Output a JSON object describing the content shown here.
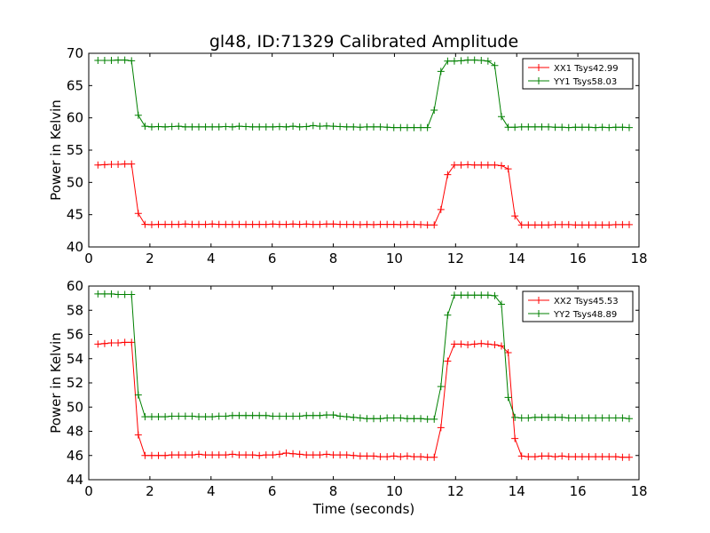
{
  "figure": {
    "title": "gl48, ID:71329 Calibrated Amplitude",
    "xlabel": "Time (seconds)"
  },
  "chart_data": [
    {
      "type": "line",
      "title": "gl48, ID:71329 Calibrated Amplitude",
      "xlabel": "",
      "ylabel": "Power in Kelvin",
      "xlim": [
        0,
        18
      ],
      "ylim": [
        40,
        70
      ],
      "xticks": [
        0,
        2,
        4,
        6,
        8,
        10,
        12,
        14,
        16,
        18
      ],
      "yticks": [
        40,
        45,
        50,
        55,
        60,
        65,
        70
      ],
      "grid": false,
      "legend_position": "top-right",
      "x": [
        0.3,
        0.52,
        0.74,
        0.96,
        1.18,
        1.4,
        1.62,
        1.84,
        2.06,
        2.28,
        2.5,
        2.72,
        2.94,
        3.16,
        3.38,
        3.6,
        3.82,
        4.04,
        4.26,
        4.48,
        4.7,
        4.92,
        5.14,
        5.36,
        5.58,
        5.8,
        6.02,
        6.24,
        6.46,
        6.68,
        6.9,
        7.12,
        7.34,
        7.56,
        7.78,
        8.0,
        8.22,
        8.44,
        8.66,
        8.88,
        9.1,
        9.32,
        9.54,
        9.76,
        9.98,
        10.2,
        10.42,
        10.64,
        10.86,
        11.08,
        11.3,
        11.52,
        11.74,
        11.96,
        12.18,
        12.4,
        12.62,
        12.84,
        13.06,
        13.28,
        13.5,
        13.72,
        13.94,
        14.16,
        14.38,
        14.6,
        14.82,
        15.04,
        15.26,
        15.48,
        15.7,
        15.92,
        16.14,
        16.36,
        16.58,
        16.8,
        17.02,
        17.24,
        17.46,
        17.68
      ],
      "series": [
        {
          "name": "XX1 Tsys42.99",
          "color": "#ff0000",
          "values": [
            52.7,
            52.75,
            52.8,
            52.8,
            52.85,
            52.85,
            45.2,
            43.5,
            43.45,
            43.5,
            43.5,
            43.5,
            43.5,
            43.55,
            43.5,
            43.5,
            43.5,
            43.55,
            43.5,
            43.5,
            43.5,
            43.5,
            43.5,
            43.5,
            43.5,
            43.5,
            43.55,
            43.5,
            43.5,
            43.55,
            43.5,
            43.55,
            43.5,
            43.5,
            43.55,
            43.55,
            43.5,
            43.5,
            43.5,
            43.45,
            43.5,
            43.45,
            43.5,
            43.5,
            43.5,
            43.45,
            43.5,
            43.5,
            43.45,
            43.4,
            43.4,
            45.8,
            51.2,
            52.7,
            52.7,
            52.75,
            52.7,
            52.7,
            52.7,
            52.7,
            52.6,
            52.1,
            44.8,
            43.4,
            43.4,
            43.4,
            43.4,
            43.4,
            43.45,
            43.45,
            43.45,
            43.4,
            43.4,
            43.4,
            43.4,
            43.4,
            43.4,
            43.45,
            43.45,
            43.45
          ]
        },
        {
          "name": "YY1 Tsys58.03",
          "color": "#008000",
          "values": [
            68.9,
            68.9,
            68.9,
            68.95,
            68.95,
            68.85,
            60.4,
            58.7,
            58.6,
            58.65,
            58.6,
            58.65,
            58.7,
            58.6,
            58.6,
            58.6,
            58.6,
            58.6,
            58.6,
            58.65,
            58.6,
            58.7,
            58.65,
            58.6,
            58.6,
            58.6,
            58.6,
            58.65,
            58.6,
            58.7,
            58.6,
            58.65,
            58.8,
            58.7,
            58.75,
            58.7,
            58.65,
            58.6,
            58.6,
            58.55,
            58.6,
            58.6,
            58.6,
            58.55,
            58.5,
            58.5,
            58.5,
            58.5,
            58.5,
            58.5,
            61.2,
            67.2,
            68.8,
            68.8,
            68.85,
            68.95,
            68.95,
            68.9,
            68.8,
            68.1,
            60.2,
            58.55,
            58.55,
            58.6,
            58.6,
            58.6,
            58.6,
            58.6,
            58.55,
            58.55,
            58.5,
            58.55,
            58.55,
            58.55,
            58.5,
            58.55,
            58.5,
            58.55,
            58.55,
            58.5
          ]
        }
      ]
    },
    {
      "type": "line",
      "title": "",
      "xlabel": "Time (seconds)",
      "ylabel": "Power in Kelvin",
      "xlim": [
        0,
        18
      ],
      "ylim": [
        44,
        60
      ],
      "xticks": [
        0,
        2,
        4,
        6,
        8,
        10,
        12,
        14,
        16,
        18
      ],
      "yticks": [
        44,
        46,
        48,
        50,
        52,
        54,
        56,
        58,
        60
      ],
      "grid": false,
      "legend_position": "top-right",
      "x": [
        0.3,
        0.52,
        0.74,
        0.96,
        1.18,
        1.4,
        1.62,
        1.84,
        2.06,
        2.28,
        2.5,
        2.72,
        2.94,
        3.16,
        3.38,
        3.6,
        3.82,
        4.04,
        4.26,
        4.48,
        4.7,
        4.92,
        5.14,
        5.36,
        5.58,
        5.8,
        6.02,
        6.24,
        6.46,
        6.68,
        6.9,
        7.12,
        7.34,
        7.56,
        7.78,
        8.0,
        8.22,
        8.44,
        8.66,
        8.88,
        9.1,
        9.32,
        9.54,
        9.76,
        9.98,
        10.2,
        10.42,
        10.64,
        10.86,
        11.08,
        11.3,
        11.52,
        11.74,
        11.96,
        12.18,
        12.4,
        12.62,
        12.84,
        13.06,
        13.28,
        13.5,
        13.72,
        13.94,
        14.16,
        14.38,
        14.6,
        14.82,
        15.04,
        15.26,
        15.48,
        15.7,
        15.92,
        16.14,
        16.36,
        16.58,
        16.8,
        17.02,
        17.24,
        17.46,
        17.68
      ],
      "series": [
        {
          "name": "XX2 Tsys45.53",
          "color": "#ff0000",
          "values": [
            55.2,
            55.25,
            55.3,
            55.3,
            55.35,
            55.35,
            47.7,
            46.0,
            46.0,
            46.0,
            46.0,
            46.05,
            46.05,
            46.05,
            46.05,
            46.1,
            46.05,
            46.05,
            46.05,
            46.05,
            46.1,
            46.05,
            46.05,
            46.05,
            46.0,
            46.05,
            46.05,
            46.1,
            46.2,
            46.15,
            46.1,
            46.05,
            46.05,
            46.05,
            46.1,
            46.05,
            46.05,
            46.05,
            46.0,
            45.95,
            45.95,
            45.95,
            45.9,
            45.9,
            45.95,
            45.9,
            45.95,
            45.9,
            45.9,
            45.85,
            45.85,
            48.3,
            53.8,
            55.2,
            55.2,
            55.15,
            55.2,
            55.25,
            55.2,
            55.15,
            55.05,
            54.5,
            47.4,
            45.95,
            45.9,
            45.9,
            45.95,
            45.95,
            45.9,
            45.95,
            45.9,
            45.9,
            45.9,
            45.9,
            45.9,
            45.9,
            45.9,
            45.9,
            45.85,
            45.85
          ]
        },
        {
          "name": "YY2 Tsys48.89",
          "color": "#008000",
          "values": [
            59.35,
            59.35,
            59.35,
            59.3,
            59.3,
            59.3,
            51.0,
            49.2,
            49.2,
            49.2,
            49.2,
            49.25,
            49.25,
            49.25,
            49.25,
            49.2,
            49.2,
            49.2,
            49.25,
            49.25,
            49.3,
            49.3,
            49.3,
            49.3,
            49.3,
            49.3,
            49.25,
            49.25,
            49.25,
            49.25,
            49.25,
            49.3,
            49.3,
            49.3,
            49.35,
            49.35,
            49.25,
            49.2,
            49.15,
            49.1,
            49.05,
            49.05,
            49.05,
            49.1,
            49.1,
            49.1,
            49.05,
            49.05,
            49.05,
            49.0,
            49.0,
            51.7,
            57.6,
            59.25,
            59.25,
            59.25,
            59.25,
            59.25,
            59.25,
            59.2,
            58.5,
            50.8,
            49.15,
            49.1,
            49.1,
            49.15,
            49.15,
            49.15,
            49.15,
            49.15,
            49.1,
            49.1,
            49.1,
            49.1,
            49.1,
            49.1,
            49.1,
            49.1,
            49.1,
            49.05
          ]
        }
      ]
    }
  ]
}
